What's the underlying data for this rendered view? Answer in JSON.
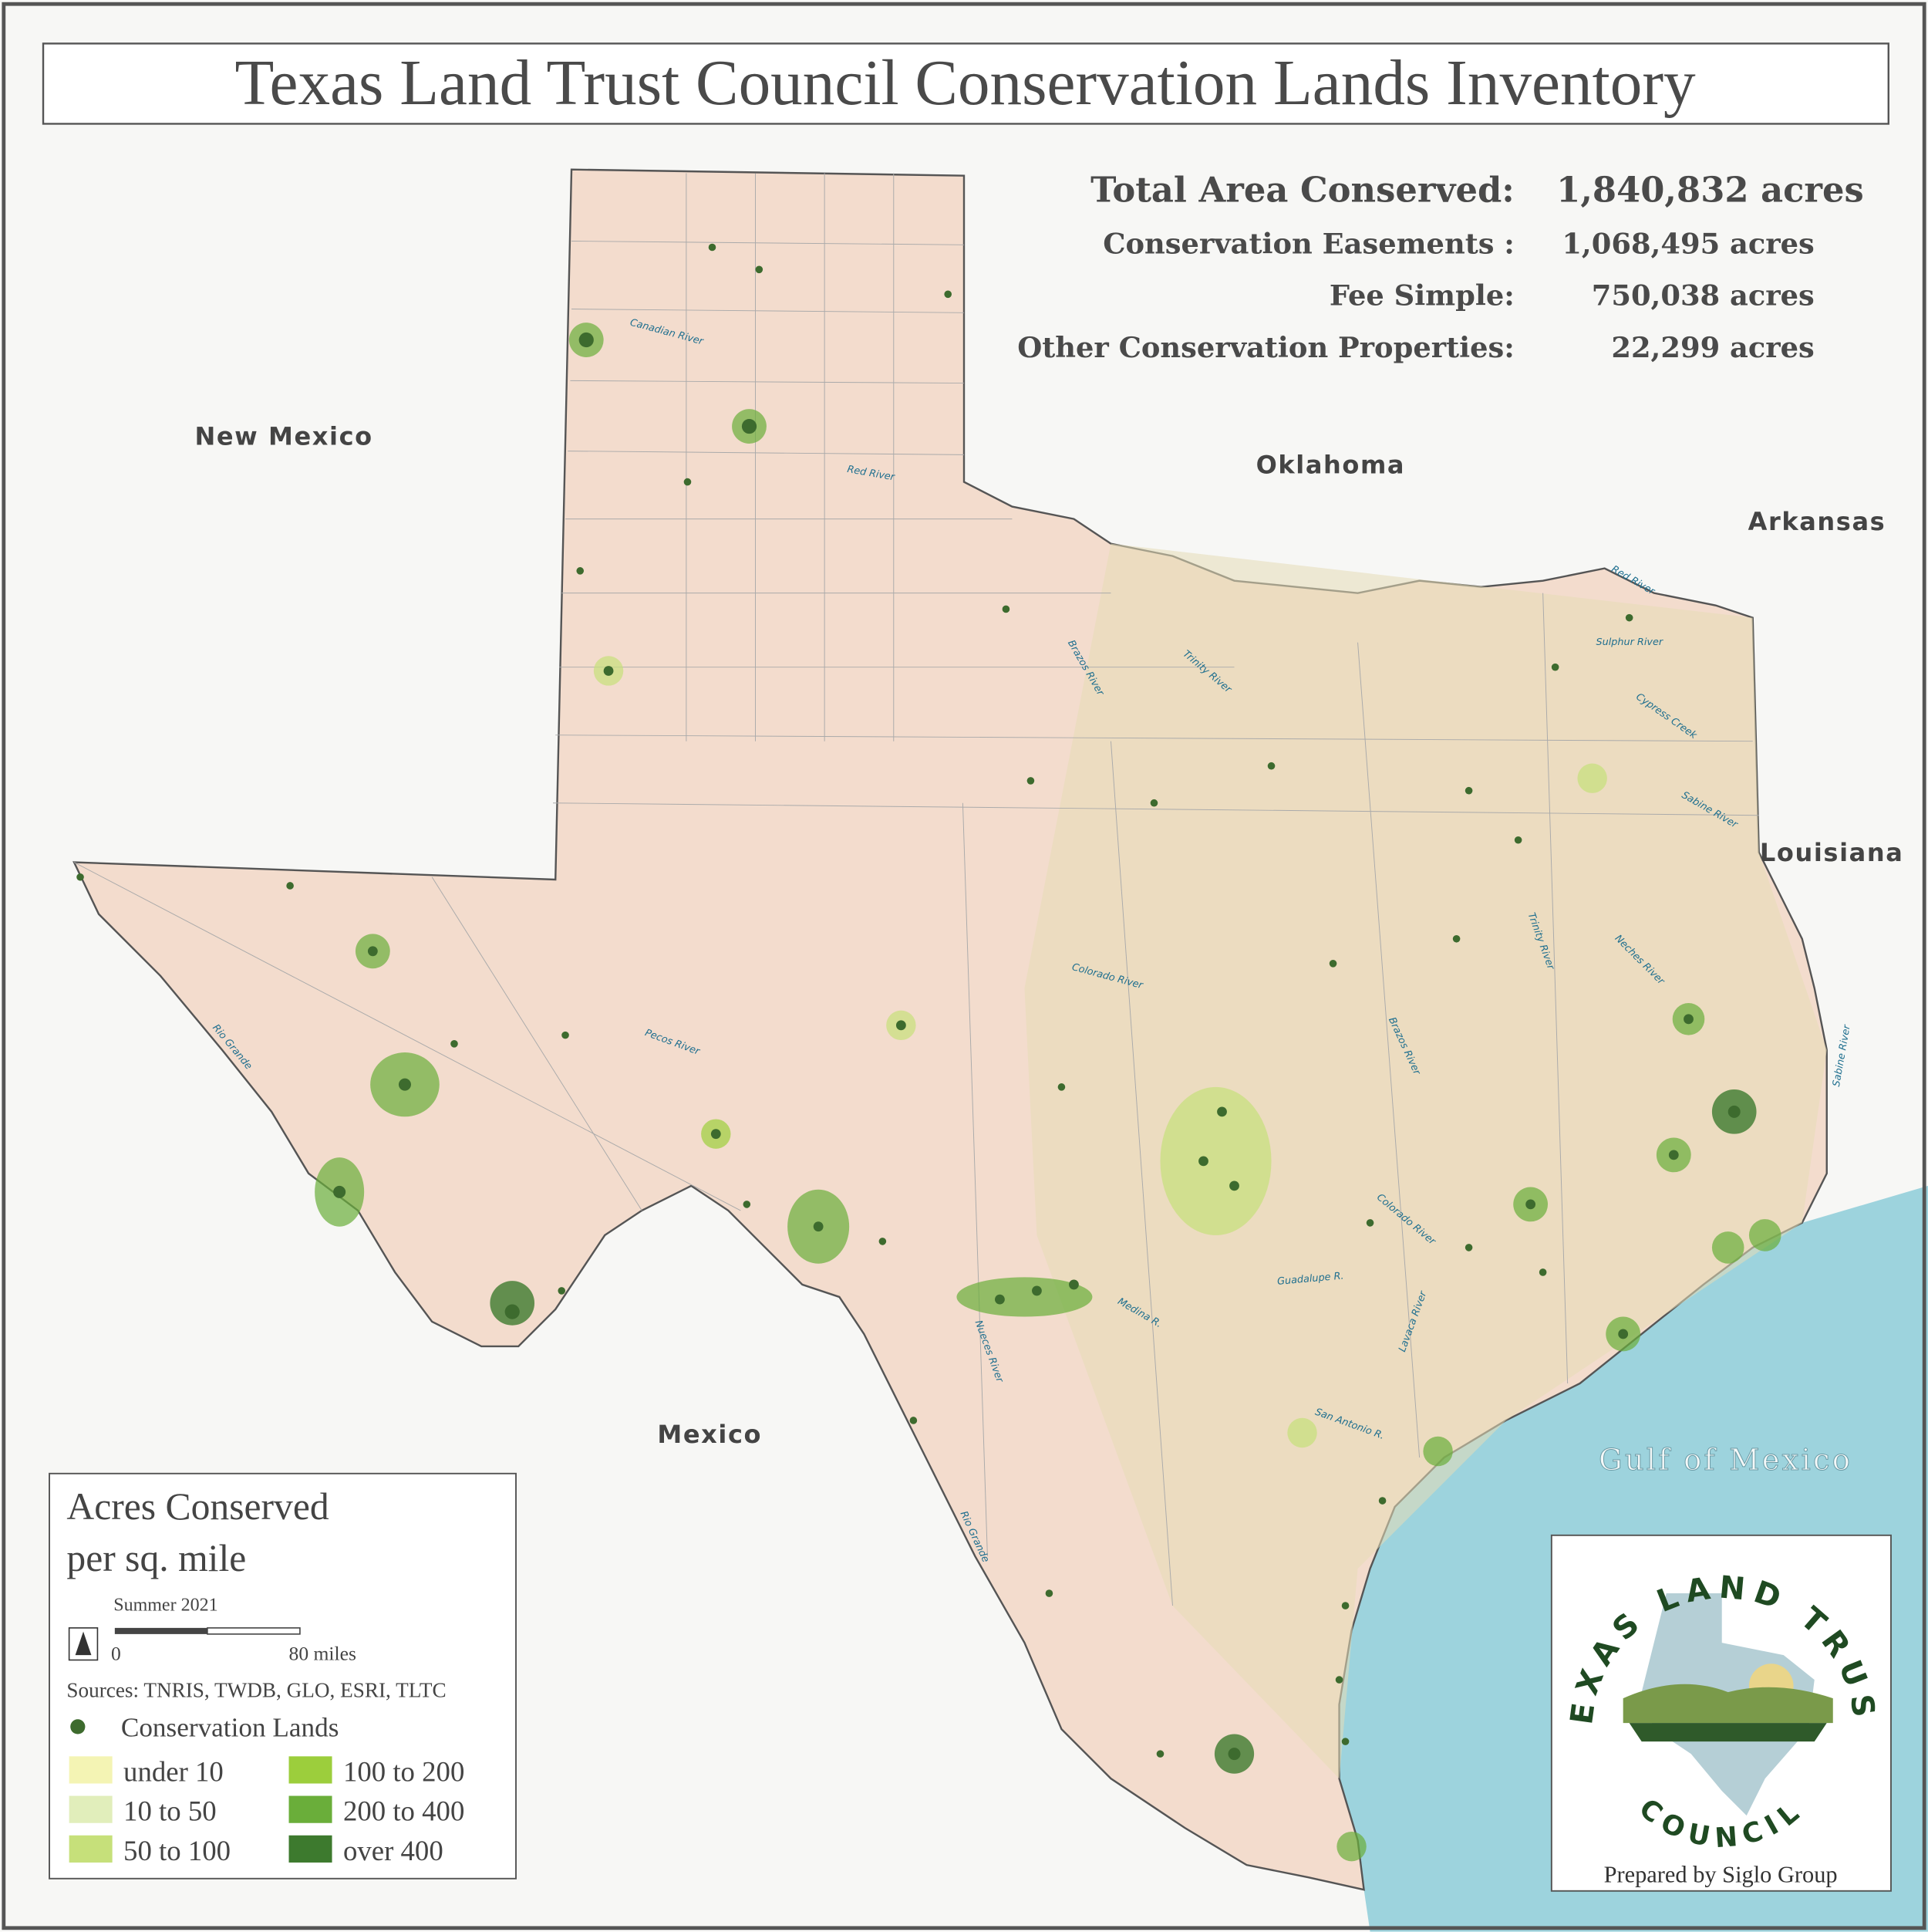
{
  "title": "Texas Land Trust Council Conservation Lands Inventory",
  "stats": [
    {
      "label": "Total Area Conserved:",
      "value": "1,840,832 acres"
    },
    {
      "label": "Conservation Easements :",
      "value": "1,068,495 acres"
    },
    {
      "label": "Fee Simple:",
      "value": "750,038 acres"
    },
    {
      "label": "Other Conservation Properties:",
      "value": "22,299 acres"
    }
  ],
  "places": [
    "New Mexico",
    "Oklahoma",
    "Arkansas",
    "Louisiana",
    "Mexico",
    "Gulf of Mexico"
  ],
  "rivers": [
    "Canadian River",
    "Red River",
    "Brazos River",
    "Trinity River",
    "Colorado River",
    "Pecos River",
    "Rio Grande",
    "Nueces River",
    "Medina R.",
    "Guadalupe R.",
    "San Antonio R.",
    "Lavaca River",
    "Colorado River",
    "Brazos River",
    "Trinity River",
    "Neches River",
    "Sabine River",
    "Cypress Creek",
    "Sulphur River",
    "Red River",
    "Rio Grande",
    "Sabine River"
  ],
  "legend": {
    "title": "Acres Conserved",
    "title2": "per sq. mile",
    "date": "Summer 2021",
    "scale_start": "0",
    "scale_end": "80 miles",
    "sources": "Sources: TNRIS, TWDB, GLO, ESRI, TLTC",
    "point": "Conservation Lands",
    "point_color": "#3d6b2e",
    "classes": [
      {
        "label": "under 10",
        "color": "#f4f4b4"
      },
      {
        "label": "10 to 50",
        "color": "#e1eebb"
      },
      {
        "label": "50 to 100",
        "color": "#c6e07a"
      },
      {
        "label": "100 to 200",
        "color": "#9cce3c"
      },
      {
        "label": "200 to 400",
        "color": "#6aae3a"
      },
      {
        "label": "over 400",
        "color": "#3d7a2e"
      }
    ]
  },
  "logo": {
    "top": "TEXAS LAND TRUST",
    "bottom": "COUNCIL",
    "credit": "Prepared by Siglo Group"
  }
}
